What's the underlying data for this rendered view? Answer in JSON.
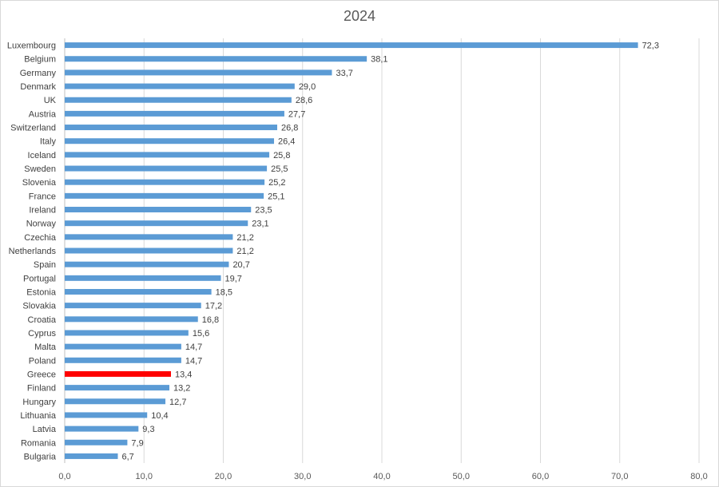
{
  "chart_data": {
    "type": "bar",
    "orientation": "horizontal",
    "title": "2024",
    "xlabel": "",
    "ylabel": "",
    "xlim": [
      0,
      80
    ],
    "x_ticks": [
      "0,0",
      "10,0",
      "20,0",
      "30,0",
      "40,0",
      "50,0",
      "60,0",
      "70,0",
      "80,0"
    ],
    "x_tick_values": [
      0,
      10,
      20,
      30,
      40,
      50,
      60,
      70,
      80
    ],
    "grid": "vertical",
    "legend": "none",
    "categories": [
      "Luxembourg",
      "Belgium",
      "Germany",
      "Denmark",
      "UK",
      "Austria",
      "Switzerland",
      "Italy",
      "Iceland",
      "Sweden",
      "Slovenia",
      "France",
      "Ireland",
      "Norway",
      "Czechia",
      "Netherlands",
      "Spain",
      "Portugal",
      "Estonia",
      "Slovakia",
      "Croatia",
      "Cyprus",
      "Malta",
      "Poland",
      "Greece",
      "Finland",
      "Hungary",
      "Lithuania",
      "Latvia",
      "Romania",
      "Bulgaria"
    ],
    "values": [
      72.3,
      38.1,
      33.7,
      29.0,
      28.6,
      27.7,
      26.8,
      26.4,
      25.8,
      25.5,
      25.2,
      25.1,
      23.5,
      23.1,
      21.2,
      21.2,
      20.7,
      19.7,
      18.5,
      17.2,
      16.8,
      15.6,
      14.7,
      14.7,
      13.4,
      13.2,
      12.7,
      10.4,
      9.3,
      7.9,
      6.7
    ],
    "value_labels": [
      "72,3",
      "38,1",
      "33,7",
      "29,0",
      "28,6",
      "27,7",
      "26,8",
      "26,4",
      "25,8",
      "25,5",
      "25,2",
      "25,1",
      "23,5",
      "23,1",
      "21,2",
      "21,2",
      "20,7",
      "19,7",
      "18,5",
      "17,2",
      "16,8",
      "15,6",
      "14,7",
      "14,7",
      "13,4",
      "13,2",
      "12,7",
      "10,4",
      "9,3",
      "7,9",
      "6,7"
    ],
    "highlight_category": "Greece",
    "colors": {
      "bar": "#5b9bd5",
      "highlight": "#ff0000",
      "grid": "#d9d9d9"
    }
  }
}
